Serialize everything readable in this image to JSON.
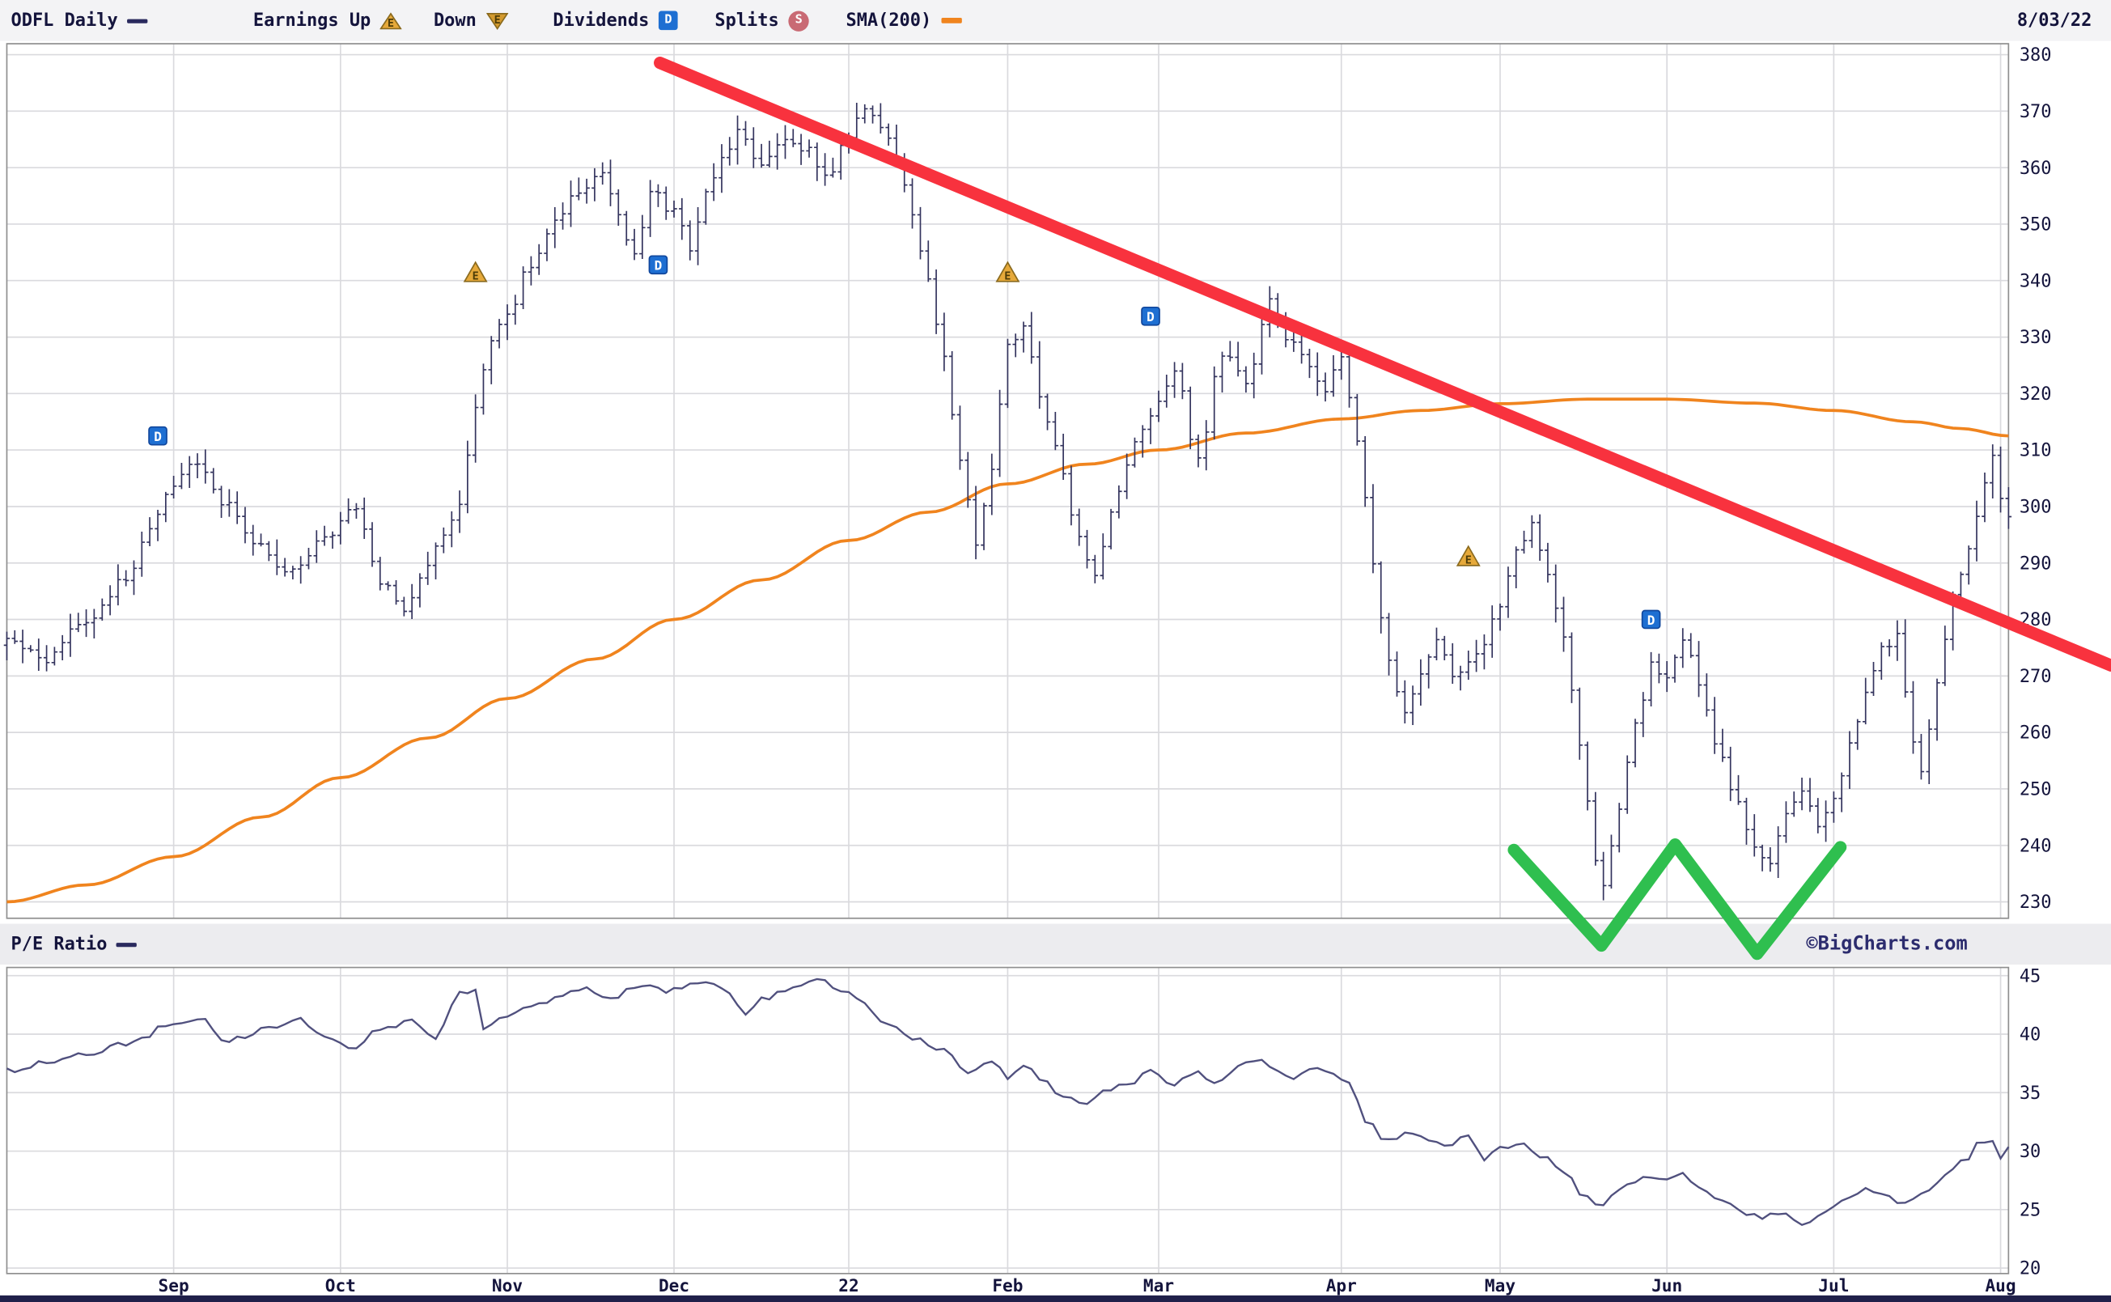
{
  "header": {
    "symbol": "ODFL Daily",
    "earnings_up": "Earnings Up",
    "down": "Down",
    "dividends": "Dividends",
    "splits": "Splits",
    "sma": "SMA(200)",
    "date": "8/03/22",
    "dividend_badge": "D",
    "split_badge": "S",
    "earnings_badge": "E"
  },
  "pe_panel": {
    "label": "P/E Ratio",
    "watermark": "©BigCharts.com"
  },
  "marker_glyphs": {
    "dividend": "D",
    "earnings_up": "E"
  },
  "colors": {
    "bar_navy": "#34345e",
    "sma_orange": "#f0841e",
    "pe_line": "#50507e",
    "trend_red": "#f8323e",
    "pattern_green": "#2fbf4f",
    "dividend_blue": "#1e6fd2",
    "earnings_gold": "#e6a93a",
    "split_rose": "#c96a74",
    "grid": "#dadade",
    "frame": "#8f8f8f",
    "text_navy": "#14143c"
  },
  "chart_data": [
    {
      "type": "ohlc-bar",
      "title": "ODFL daily price with 200-day SMA",
      "legend_position": "top",
      "grid": true,
      "ylabel_side": "right",
      "ylim": [
        230,
        380
      ],
      "yticks": [
        380,
        370,
        360,
        350,
        340,
        330,
        320,
        310,
        300,
        290,
        280,
        270,
        260,
        250,
        240,
        230
      ],
      "total_days": 253,
      "month_ticks": [
        [
          "Sep",
          21
        ],
        [
          "Oct",
          42
        ],
        [
          "Nov",
          63
        ],
        [
          "Dec",
          84
        ],
        [
          "22",
          106
        ],
        [
          "Feb",
          126
        ],
        [
          "Mar",
          145
        ],
        [
          "Apr",
          168
        ],
        [
          "May",
          188
        ],
        [
          "Jun",
          209
        ],
        [
          "Jul",
          230
        ],
        [
          "Aug",
          251
        ]
      ],
      "bar_color": "#34345e",
      "sma_color": "#f0841e",
      "close_anchors": [
        [
          0,
          277
        ],
        [
          5,
          273
        ],
        [
          10,
          280
        ],
        [
          15,
          287
        ],
        [
          18,
          296
        ],
        [
          21,
          304
        ],
        [
          24,
          308
        ],
        [
          27,
          301
        ],
        [
          31,
          294
        ],
        [
          35,
          288
        ],
        [
          40,
          294
        ],
        [
          44,
          300
        ],
        [
          47,
          287
        ],
        [
          50,
          282
        ],
        [
          53,
          290
        ],
        [
          55,
          295
        ],
        [
          57,
          301
        ],
        [
          59,
          318
        ],
        [
          61,
          330
        ],
        [
          63,
          334
        ],
        [
          66,
          343
        ],
        [
          69,
          350
        ],
        [
          72,
          356
        ],
        [
          75,
          359
        ],
        [
          77,
          352
        ],
        [
          79,
          344
        ],
        [
          81,
          356
        ],
        [
          84,
          352
        ],
        [
          86,
          346
        ],
        [
          88,
          355
        ],
        [
          90,
          362
        ],
        [
          92,
          366
        ],
        [
          95,
          360
        ],
        [
          98,
          365
        ],
        [
          101,
          363
        ],
        [
          103,
          358
        ],
        [
          106,
          366
        ],
        [
          108,
          370
        ],
        [
          110,
          367
        ],
        [
          112,
          362
        ],
        [
          114,
          352
        ],
        [
          116,
          340
        ],
        [
          118,
          326
        ],
        [
          120,
          308
        ],
        [
          122,
          293
        ],
        [
          124,
          307
        ],
        [
          126,
          328
        ],
        [
          128,
          332
        ],
        [
          130,
          320
        ],
        [
          132,
          310
        ],
        [
          135,
          295
        ],
        [
          137,
          287
        ],
        [
          139,
          299
        ],
        [
          142,
          311
        ],
        [
          144,
          316
        ],
        [
          147,
          324
        ],
        [
          150,
          308
        ],
        [
          153,
          327
        ],
        [
          156,
          322
        ],
        [
          159,
          336
        ],
        [
          161,
          330
        ],
        [
          163,
          327
        ],
        [
          166,
          321
        ],
        [
          168,
          327
        ],
        [
          170,
          312
        ],
        [
          172,
          290
        ],
        [
          174,
          272
        ],
        [
          176,
          263
        ],
        [
          178,
          270
        ],
        [
          180,
          276
        ],
        [
          182,
          270
        ],
        [
          184,
          272
        ],
        [
          186,
          276
        ],
        [
          188,
          283
        ],
        [
          190,
          292
        ],
        [
          192,
          297
        ],
        [
          194,
          288
        ],
        [
          196,
          277
        ],
        [
          198,
          258
        ],
        [
          200,
          238
        ],
        [
          201,
          233
        ],
        [
          203,
          247
        ],
        [
          205,
          261
        ],
        [
          207,
          272
        ],
        [
          209,
          270
        ],
        [
          211,
          277
        ],
        [
          213,
          269
        ],
        [
          215,
          258
        ],
        [
          218,
          247
        ],
        [
          220,
          239
        ],
        [
          222,
          236
        ],
        [
          224,
          246
        ],
        [
          226,
          250
        ],
        [
          228,
          244
        ],
        [
          230,
          248
        ],
        [
          232,
          258
        ],
        [
          234,
          267
        ],
        [
          236,
          275
        ],
        [
          238,
          277
        ],
        [
          240,
          258
        ],
        [
          241,
          253
        ],
        [
          243,
          268
        ],
        [
          245,
          284
        ],
        [
          247,
          292
        ],
        [
          249,
          305
        ],
        [
          250,
          309
        ],
        [
          251,
          302
        ],
        [
          252,
          298
        ]
      ],
      "sma200_anchors": [
        [
          0,
          230
        ],
        [
          10,
          233
        ],
        [
          21,
          238
        ],
        [
          32,
          245
        ],
        [
          42,
          252
        ],
        [
          53,
          259
        ],
        [
          63,
          266
        ],
        [
          74,
          273
        ],
        [
          84,
          280
        ],
        [
          95,
          287
        ],
        [
          106,
          294
        ],
        [
          116,
          299
        ],
        [
          126,
          304
        ],
        [
          136,
          307.5
        ],
        [
          145,
          310
        ],
        [
          156,
          313
        ],
        [
          168,
          315.5
        ],
        [
          178,
          317
        ],
        [
          188,
          318.2
        ],
        [
          199,
          319
        ],
        [
          209,
          319
        ],
        [
          220,
          318.3
        ],
        [
          230,
          317
        ],
        [
          240,
          315
        ],
        [
          246,
          313.8
        ],
        [
          252,
          312.5
        ]
      ],
      "markers": [
        {
          "type": "dividend",
          "day": 19,
          "price": 312.5
        },
        {
          "type": "earnings_up",
          "day": 59,
          "price": 341.3
        },
        {
          "type": "dividend",
          "day": 82,
          "price": 342.8
        },
        {
          "type": "earnings_up",
          "day": 126,
          "price": 341.3
        },
        {
          "type": "dividend",
          "day": 144,
          "price": 333.7
        },
        {
          "type": "earnings_up",
          "day": 184,
          "price": 291
        },
        {
          "type": "dividend",
          "day": 207,
          "price": 280
        }
      ]
    },
    {
      "type": "line",
      "title": "P/E Ratio",
      "grid": true,
      "ylabel_side": "right",
      "ylim": [
        20,
        45
      ],
      "yticks": [
        45,
        40,
        35,
        30,
        25,
        20
      ],
      "color": "#50507e",
      "anchors": [
        [
          0,
          36.9
        ],
        [
          5,
          37.6
        ],
        [
          10,
          38.3
        ],
        [
          16,
          39.3
        ],
        [
          20,
          40.6
        ],
        [
          25,
          41.2
        ],
        [
          27,
          39.4
        ],
        [
          30,
          39.8
        ],
        [
          33,
          40.5
        ],
        [
          37,
          41.2
        ],
        [
          40,
          39.7
        ],
        [
          44,
          38.9
        ],
        [
          47,
          40.5
        ],
        [
          51,
          41.2
        ],
        [
          54,
          39.7
        ],
        [
          57,
          43.5
        ],
        [
          59,
          43.9
        ],
        [
          60,
          40.3
        ],
        [
          63,
          41.4
        ],
        [
          66,
          42.5
        ],
        [
          70,
          43.3
        ],
        [
          73,
          43.9
        ],
        [
          76,
          43.1
        ],
        [
          80,
          44.2
        ],
        [
          83,
          43.7
        ],
        [
          87,
          44.5
        ],
        [
          90,
          43.9
        ],
        [
          93,
          41.8
        ],
        [
          95,
          43.1
        ],
        [
          99,
          43.9
        ],
        [
          102,
          44.6
        ],
        [
          105,
          43.9
        ],
        [
          107,
          43.1
        ],
        [
          111,
          40.9
        ],
        [
          114,
          39.7
        ],
        [
          118,
          38.6
        ],
        [
          121,
          36.9
        ],
        [
          124,
          37.6
        ],
        [
          126,
          36.4
        ],
        [
          128,
          37.2
        ],
        [
          131,
          35.8
        ],
        [
          133,
          34.5
        ],
        [
          136,
          33.8
        ],
        [
          138,
          35.1
        ],
        [
          142,
          36.0
        ],
        [
          144,
          36.9
        ],
        [
          147,
          35.8
        ],
        [
          150,
          36.7
        ],
        [
          152,
          35.6
        ],
        [
          155,
          37.2
        ],
        [
          157,
          37.8
        ],
        [
          160,
          36.9
        ],
        [
          162,
          36.4
        ],
        [
          165,
          37.2
        ],
        [
          167,
          36.7
        ],
        [
          169,
          35.8
        ],
        [
          171,
          32.5
        ],
        [
          174,
          30.8
        ],
        [
          176,
          31.5
        ],
        [
          179,
          31.1
        ],
        [
          181,
          30.4
        ],
        [
          184,
          31.3
        ],
        [
          186,
          29.3
        ],
        [
          188,
          30.2
        ],
        [
          191,
          30.8
        ],
        [
          193,
          29.6
        ],
        [
          196,
          28.2
        ],
        [
          199,
          25.9
        ],
        [
          200,
          25.2
        ],
        [
          203,
          26.8
        ],
        [
          206,
          27.7
        ],
        [
          208,
          27.4
        ],
        [
          211,
          28.0
        ],
        [
          213,
          27.1
        ],
        [
          216,
          25.7
        ],
        [
          218,
          24.8
        ],
        [
          221,
          24.3
        ],
        [
          223,
          24.8
        ],
        [
          226,
          23.9
        ],
        [
          229,
          24.8
        ],
        [
          231,
          25.9
        ],
        [
          234,
          26.8
        ],
        [
          236,
          26.3
        ],
        [
          239,
          25.4
        ],
        [
          242,
          26.8
        ],
        [
          244,
          28.0
        ],
        [
          247,
          29.3
        ],
        [
          248,
          30.8
        ],
        [
          250,
          31.0
        ],
        [
          251,
          29.6
        ],
        [
          252,
          30.2
        ]
      ]
    }
  ],
  "annotations": {
    "trendline": {
      "color": "#f8323e",
      "width": 9,
      "from": [
        483,
        46
      ],
      "to": [
        1545,
        487
      ]
    },
    "w_pattern": {
      "color": "#2fbf4f",
      "width": 9,
      "points": [
        [
          1108,
          622
        ],
        [
          1172,
          692
        ],
        [
          1226,
          618
        ],
        [
          1286,
          698
        ],
        [
          1347,
          620
        ]
      ]
    }
  }
}
